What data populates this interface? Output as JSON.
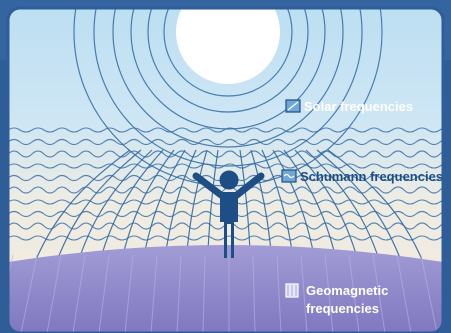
{
  "legend": [
    {
      "id": "solar",
      "label": "Solar frequencies",
      "icon": "diagonal-waves-icon"
    },
    {
      "id": "schumann",
      "label": "Schumann frequencies",
      "icon": "horizontal-waves-icon"
    },
    {
      "id": "geomagnetic",
      "label_line1": "Geomagnetic",
      "label_line2": "frequencies",
      "icon": "vertical-lines-icon"
    }
  ],
  "colors": {
    "frame": "#2f5d97",
    "sky_top": "#bfe0f3",
    "sky_mid": "#dcebf5",
    "cream": "#f3ece0",
    "ground": "#8a84c8",
    "ground_light": "#a59fd6",
    "line": "#2e6aa6",
    "person": "#1d4f86",
    "sun": "#ffffff"
  }
}
